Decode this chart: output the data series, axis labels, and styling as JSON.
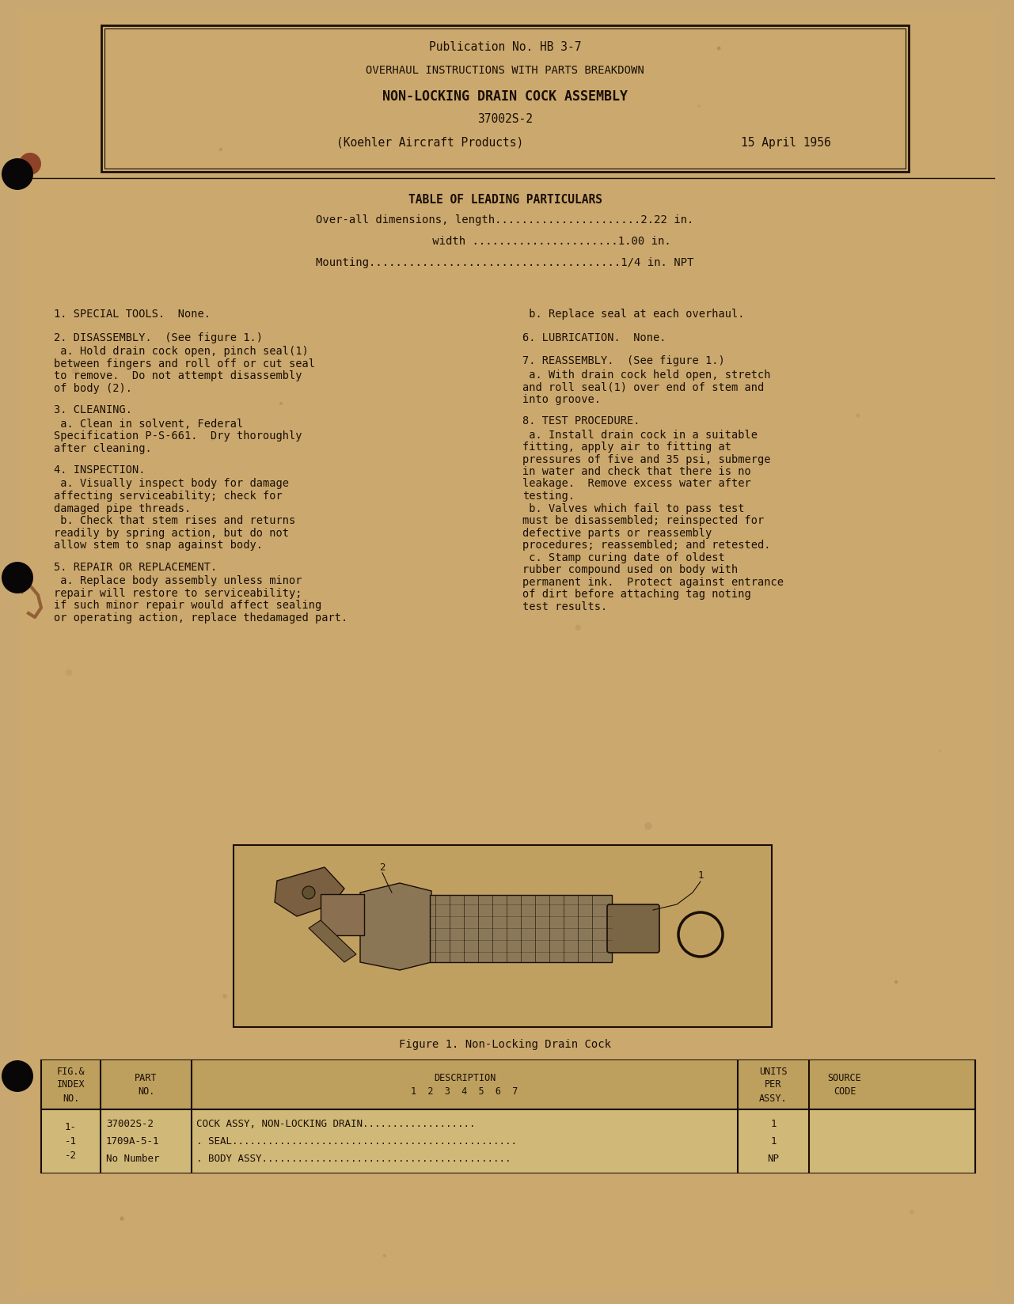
{
  "bg_color": "#c8a870",
  "text_color": "#1a0e06",
  "title_box": {
    "pub_line": "Publication No. HB 3-7",
    "line2": "OVERHAUL INSTRUCTIONS WITH PARTS BREAKDOWN",
    "line3": "NON-LOCKING DRAIN COCK ASSEMBLY",
    "line4": "37002S-2",
    "line5": "(Koehler Aircraft Products)",
    "date": "15 April 1956"
  },
  "table_title": "TABLE OF LEADING PARTICULARS",
  "particulars": [
    "Over-all dimensions, length......................2.22 in.",
    "              width ......................1.00 in.",
    "Mounting......................................1/4 in. NPT"
  ],
  "left_col_items": [
    {
      "head": "1. SPECIAL TOOLS.  None.",
      "body": []
    },
    {
      "head": "2. DISASSEMBLY.  (See figure 1.)",
      "body": [
        " a. Hold drain cock open, pinch seal(1)",
        "between fingers and roll off or cut seal",
        "to remove.  Do not attempt disassembly",
        "of body (2)."
      ]
    },
    {
      "head": "3. CLEANING.",
      "body": [
        " a. Clean in solvent, Federal",
        "Specification P-S-661.  Dry thoroughly",
        "after cleaning."
      ]
    },
    {
      "head": "4. INSPECTION.",
      "body": [
        " a. Visually inspect body for damage",
        "affecting serviceability; check for",
        "damaged pipe threads.",
        " b. Check that stem rises and returns",
        "readily by spring action, but do not",
        "allow stem to snap against body."
      ]
    },
    {
      "head": "5. REPAIR OR REPLACEMENT.",
      "body": [
        " a. Replace body assembly unless minor",
        "repair will restore to serviceability;",
        "if such minor repair would affect sealing",
        "or operating action, replace thedamaged part."
      ]
    }
  ],
  "right_col_items": [
    {
      "head": " b. Replace seal at each overhaul.",
      "body": []
    },
    {
      "head": "6. LUBRICATION.  None.",
      "body": []
    },
    {
      "head": "7. REASSEMBLY.  (See figure 1.)",
      "body": [
        " a. With drain cock held open, stretch",
        "and roll seal(1) over end of stem and",
        "into groove."
      ]
    },
    {
      "head": "8. TEST PROCEDURE.",
      "body": [
        " a. Install drain cock in a suitable",
        "fitting, apply air to fitting at",
        "pressures of five and 35 psi, submerge",
        "in water and check that there is no",
        "leakage.  Remove excess water after",
        "testing.",
        " b. Valves which fail to pass test",
        "must be disassembled; reinspected for",
        "defective parts or reassembly",
        "procedures; reassembled; and retested.",
        " c. Stamp curing date of oldest",
        "rubber compound used on body with",
        "permanent ink.  Protect against entrance",
        "of dirt before attaching tag noting",
        "test results."
      ]
    }
  ],
  "figure_caption": "Figure 1. Non-Locking Drain Cock",
  "table_col_widths": [
    75,
    115,
    690,
    90,
    90
  ],
  "table_header_rows": [
    "FIG.&\nINDEX\nNO.",
    "PART\nNO.",
    "DESCRIPTION\n1  2  3  4  5  6  7",
    "UNITS\nPER\nASSY.",
    "SOURCE\nCODE"
  ],
  "row_fig_index": "1-\n-1\n-2",
  "row_parts": [
    "37002S-2",
    "1709A-5-1",
    "No Number"
  ],
  "row_desc": [
    "COCK ASSY, NON-LOCKING DRAIN...................",
    ". SEAL................................................",
    ". BODY ASSY.........................................."
  ],
  "row_units": [
    "1",
    "1",
    "NP"
  ]
}
